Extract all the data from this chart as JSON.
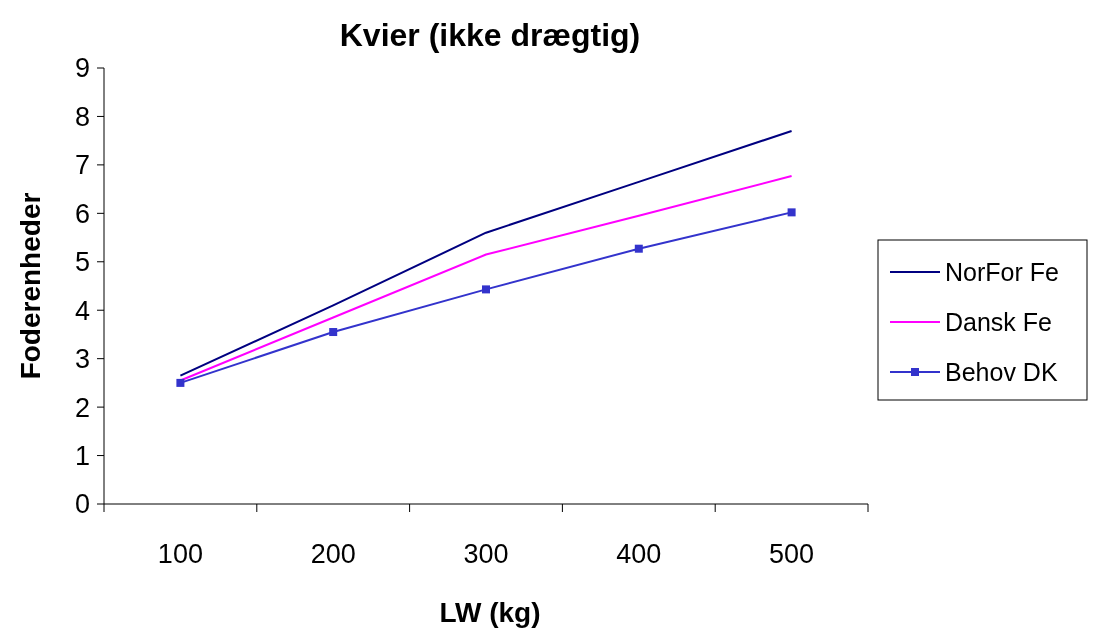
{
  "chart_data": {
    "type": "line",
    "title": "Kvier (ikke drægtig)",
    "xlabel": "LW (kg)",
    "ylabel": "Foderenheder",
    "categories": [
      "100",
      "200",
      "300",
      "400",
      "500"
    ],
    "series": [
      {
        "name": "NorFor Fe",
        "color": "#000080",
        "values": [
          2.65,
          4.1,
          5.6,
          6.65,
          7.7
        ],
        "marker": "none"
      },
      {
        "name": "Dansk Fe",
        "color": "#ff00ff",
        "values": [
          2.55,
          3.85,
          5.15,
          5.95,
          6.77
        ],
        "marker": "none"
      },
      {
        "name": "Behov DK",
        "color": "#3333cc",
        "values": [
          2.5,
          3.55,
          4.43,
          5.27,
          6.02
        ],
        "marker": "square"
      }
    ],
    "ylim": [
      0,
      9
    ],
    "yticks": [
      0,
      1,
      2,
      3,
      4,
      5,
      6,
      7,
      8,
      9
    ],
    "grid": false,
    "legend": "right",
    "line_style": "solid"
  }
}
